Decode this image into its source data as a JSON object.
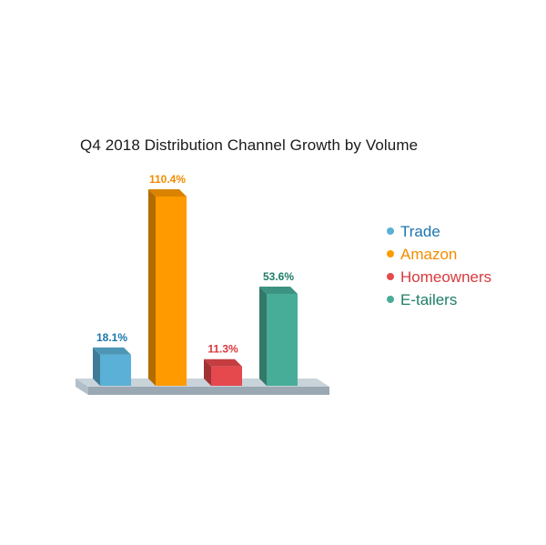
{
  "chart_data": {
    "type": "bar",
    "title": "Q4 2018 Distribution Channel Growth by Volume",
    "xlabel": "",
    "ylabel": "",
    "ylim": [
      0,
      110.4
    ],
    "grid": false,
    "legend_position": "right",
    "categories": [
      "Trade",
      "Amazon",
      "Homeowners",
      "E-tailers"
    ],
    "values": [
      18.1,
      110.4,
      11.3,
      53.6
    ],
    "value_labels": [
      "18.1%",
      "110.4%",
      "11.3%",
      "53.6%"
    ],
    "colors": [
      "#5ab0d6",
      "#ff9a00",
      "#e5484d",
      "#48ad98"
    ],
    "label_colors": [
      "#1b75b0",
      "#f28c00",
      "#d9393d",
      "#1e7d66"
    ]
  }
}
